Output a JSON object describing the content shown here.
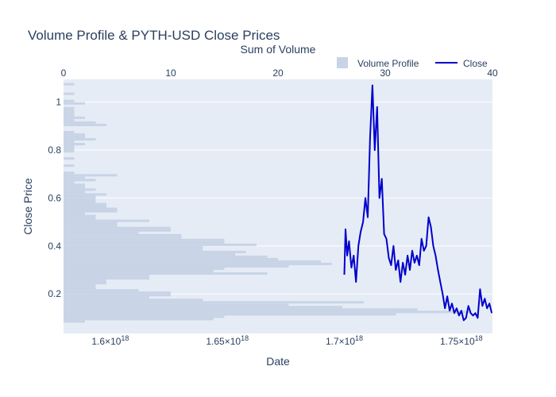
{
  "chart_data": {
    "type": "line",
    "title": "Volume Profile & PYTH-USD Close Prices",
    "xlabel": "Date",
    "ylabel": "Close Price",
    "x2label": "Sum of Volume",
    "legend": {
      "placement": "top-right",
      "entries": [
        "Volume Profile",
        "Close"
      ]
    },
    "colors": {
      "volume": "#c8d4e6",
      "close": "#0000cc",
      "plot_bg": "#e5ecf6"
    },
    "xlim": [
      1.58e+18,
      1.7633e+18
    ],
    "ylim": [
      0.035,
      1.095
    ],
    "x2lim": [
      0,
      40
    ],
    "x_ticks": [
      {
        "value": 1.6e+18,
        "base": "1.6×10",
        "exp": "18"
      },
      {
        "value": 1.65e+18,
        "base": "1.65×10",
        "exp": "18"
      },
      {
        "value": 1.7e+18,
        "base": "1.7×10",
        "exp": "18"
      },
      {
        "value": 1.75e+18,
        "base": "1.75×10",
        "exp": "18"
      }
    ],
    "y_ticks": [
      0.2,
      0.4,
      0.6,
      0.8,
      1
    ],
    "x2_ticks": [
      "0",
      "10",
      "20",
      "30",
      "40"
    ],
    "volume_profile": {
      "bin_width": 0.01,
      "bins": [
        [
          0.08,
          2
        ],
        [
          0.09,
          14
        ],
        [
          0.1,
          15
        ],
        [
          0.11,
          31
        ],
        [
          0.12,
          38
        ],
        [
          0.13,
          33
        ],
        [
          0.14,
          26
        ],
        [
          0.15,
          21
        ],
        [
          0.16,
          28
        ],
        [
          0.17,
          13
        ],
        [
          0.18,
          8
        ],
        [
          0.19,
          10
        ],
        [
          0.2,
          10
        ],
        [
          0.21,
          7
        ],
        [
          0.22,
          3
        ],
        [
          0.23,
          3
        ],
        [
          0.24,
          4
        ],
        [
          0.25,
          4
        ],
        [
          0.26,
          8
        ],
        [
          0.27,
          8
        ],
        [
          0.28,
          19
        ],
        [
          0.29,
          14
        ],
        [
          0.3,
          15
        ],
        [
          0.31,
          21
        ],
        [
          0.32,
          25
        ],
        [
          0.33,
          24
        ],
        [
          0.34,
          20
        ],
        [
          0.35,
          19
        ],
        [
          0.36,
          16
        ],
        [
          0.37,
          17
        ],
        [
          0.38,
          13
        ],
        [
          0.39,
          13
        ],
        [
          0.4,
          18
        ],
        [
          0.41,
          15
        ],
        [
          0.42,
          15
        ],
        [
          0.43,
          11
        ],
        [
          0.44,
          11
        ],
        [
          0.45,
          7
        ],
        [
          0.46,
          10
        ],
        [
          0.47,
          10
        ],
        [
          0.48,
          5
        ],
        [
          0.49,
          5
        ],
        [
          0.5,
          8
        ],
        [
          0.51,
          3
        ],
        [
          0.52,
          3
        ],
        [
          0.53,
          2
        ],
        [
          0.54,
          5
        ],
        [
          0.55,
          5
        ],
        [
          0.56,
          4
        ],
        [
          0.57,
          4
        ],
        [
          0.58,
          3
        ],
        [
          0.59,
          3
        ],
        [
          0.6,
          3
        ],
        [
          0.61,
          4
        ],
        [
          0.62,
          2
        ],
        [
          0.63,
          3
        ],
        [
          0.64,
          2
        ],
        [
          0.65,
          2
        ],
        [
          0.66,
          1
        ],
        [
          0.67,
          3
        ],
        [
          0.68,
          2
        ],
        [
          0.69,
          5
        ],
        [
          0.7,
          1
        ],
        [
          0.73,
          1
        ],
        [
          0.76,
          1
        ],
        [
          0.79,
          1
        ],
        [
          0.8,
          1
        ],
        [
          0.81,
          1
        ],
        [
          0.82,
          2
        ],
        [
          0.83,
          1
        ],
        [
          0.84,
          3
        ],
        [
          0.85,
          2
        ],
        [
          0.86,
          2
        ],
        [
          0.87,
          1
        ],
        [
          0.9,
          4
        ],
        [
          0.91,
          3
        ],
        [
          0.92,
          1
        ],
        [
          0.93,
          2
        ],
        [
          0.94,
          1
        ],
        [
          0.95,
          1
        ],
        [
          0.96,
          1
        ],
        [
          0.97,
          1
        ],
        [
          0.99,
          2
        ],
        [
          1.0,
          1
        ],
        [
          1.03,
          1
        ],
        [
          1.07,
          1
        ]
      ]
    },
    "close_series": {
      "name": "Close",
      "x": [
        1.7e+18,
        1.7005e+18,
        1.7012e+18,
        1.702e+18,
        1.703e+18,
        1.704e+18,
        1.705e+18,
        1.706e+18,
        1.707e+18,
        1.708e+18,
        1.709e+18,
        1.71e+18,
        1.711e+18,
        1.712e+18,
        1.713e+18,
        1.714e+18,
        1.715e+18,
        1.716e+18,
        1.717e+18,
        1.718e+18,
        1.719e+18,
        1.72e+18,
        1.721e+18,
        1.722e+18,
        1.723e+18,
        1.724e+18,
        1.725e+18,
        1.726e+18,
        1.727e+18,
        1.728e+18,
        1.729e+18,
        1.73e+18,
        1.731e+18,
        1.732e+18,
        1.733e+18,
        1.734e+18,
        1.735e+18,
        1.736e+18,
        1.737e+18,
        1.738e+18,
        1.739e+18,
        1.74e+18,
        1.741e+18,
        1.742e+18,
        1.743e+18,
        1.744e+18,
        1.745e+18,
        1.746e+18,
        1.747e+18,
        1.748e+18,
        1.749e+18,
        1.75e+18,
        1.751e+18,
        1.752e+18,
        1.753e+18,
        1.754e+18,
        1.755e+18,
        1.756e+18,
        1.757e+18,
        1.758e+18,
        1.759e+18,
        1.76e+18,
        1.761e+18,
        1.762e+18,
        1.763e+18
      ],
      "y": [
        0.28,
        0.47,
        0.36,
        0.42,
        0.31,
        0.36,
        0.25,
        0.4,
        0.46,
        0.5,
        0.6,
        0.52,
        0.85,
        1.07,
        0.8,
        0.98,
        0.6,
        0.68,
        0.45,
        0.43,
        0.35,
        0.32,
        0.4,
        0.3,
        0.34,
        0.25,
        0.33,
        0.28,
        0.36,
        0.3,
        0.38,
        0.33,
        0.36,
        0.32,
        0.43,
        0.38,
        0.4,
        0.52,
        0.48,
        0.4,
        0.36,
        0.3,
        0.25,
        0.2,
        0.14,
        0.19,
        0.13,
        0.16,
        0.12,
        0.14,
        0.11,
        0.13,
        0.09,
        0.1,
        0.15,
        0.12,
        0.11,
        0.12,
        0.1,
        0.22,
        0.15,
        0.18,
        0.14,
        0.16,
        0.12
      ]
    }
  }
}
